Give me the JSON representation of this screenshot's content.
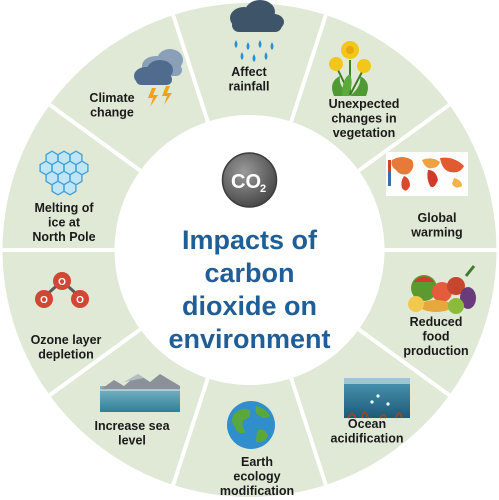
{
  "center": {
    "co2_main": "CO",
    "co2_sub": "2",
    "title_lines": [
      "Impacts of",
      "carbon",
      "dioxide on",
      "environment"
    ]
  },
  "segments": [
    {
      "id": "affect-rainfall",
      "lines": [
        "Affect",
        "rainfall"
      ],
      "icon": "rain-cloud-icon"
    },
    {
      "id": "unexpected-changes-in-vegetation",
      "lines": [
        "Unexpected",
        "changes in",
        "vegetation"
      ],
      "icon": "dandelion-icon"
    },
    {
      "id": "global-warming",
      "lines": [
        "Global",
        "warming"
      ],
      "icon": "heat-map-icon"
    },
    {
      "id": "reduced-food-production",
      "lines": [
        "Reduced",
        "food",
        "production"
      ],
      "icon": "food-pile-icon"
    },
    {
      "id": "ocean-acidification",
      "lines": [
        "Ocean",
        "acidification"
      ],
      "icon": "ocean-tank-icon"
    },
    {
      "id": "earth-ecology-modification",
      "lines": [
        "Earth",
        "ecology",
        "modification"
      ],
      "icon": "globe-icon"
    },
    {
      "id": "increase-sea-level",
      "lines": [
        "Increase sea",
        "level"
      ],
      "icon": "sea-level-icon"
    },
    {
      "id": "ozone-layer-depletion",
      "lines": [
        "Ozone layer",
        "depletion"
      ],
      "icon": "ozone-molecule-icon"
    },
    {
      "id": "melting-of-ice-at-north-pole",
      "lines": [
        "Melting of",
        "ice at",
        "North Pole"
      ],
      "icon": "ice-hexagons-icon"
    },
    {
      "id": "climate-change",
      "lines": [
        "Climate",
        "change"
      ],
      "icon": "storm-cloud-icon"
    }
  ],
  "colors": {
    "ring": "#dfe9d6",
    "divider": "#ffffff",
    "inner_circle": "#ffffff",
    "title": "#1f5e96",
    "co2_ball": "#6b6b6b"
  }
}
